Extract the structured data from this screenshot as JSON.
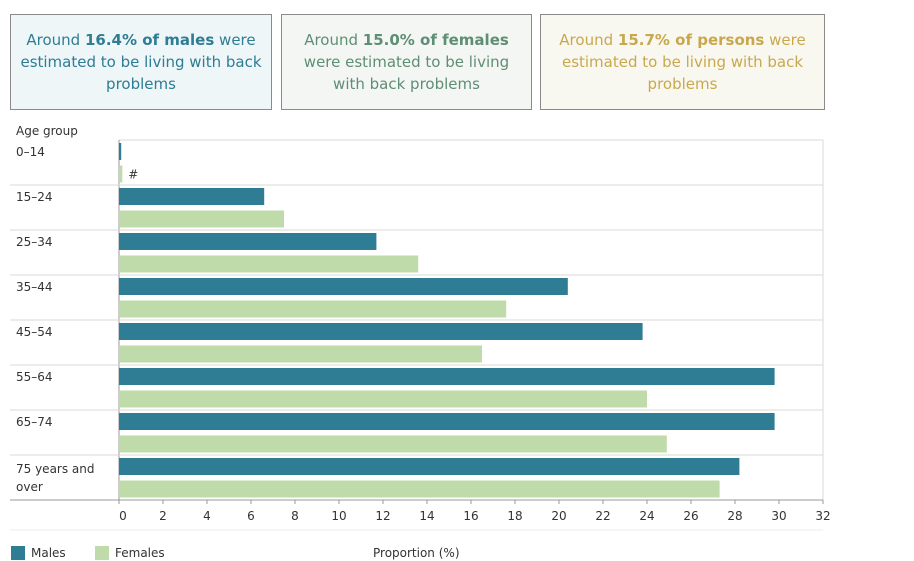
{
  "cards": {
    "males": {
      "pre": "Around ",
      "bold": "16.4% of males",
      "post": " were estimated to be living with back problems"
    },
    "females": {
      "pre": "Around ",
      "bold": "15.0% of females",
      "post": " were estimated to be living with back problems"
    },
    "persons": {
      "pre": "Around ",
      "bold": "15.7% of persons",
      "post": " were estimated to be living with back problems"
    }
  },
  "legend": {
    "males": "Males",
    "females": "Females"
  },
  "colors": {
    "males": "#2e7d95",
    "females": "#bfdba9",
    "grid": "#d8d8d8"
  },
  "chart_data": {
    "type": "bar",
    "orientation": "horizontal",
    "title": "",
    "ylabel": "Age group",
    "xlabel": "Proportion (%)",
    "xlim": [
      0,
      32
    ],
    "xticks": [
      "0",
      "2",
      "4",
      "6",
      "8",
      "10",
      "12",
      "14",
      "16",
      "18",
      "20",
      "22",
      "24",
      "26",
      "28",
      "30",
      "32"
    ],
    "categories": [
      "0–14",
      "15–24",
      "25–34",
      "35–44",
      "45–54",
      "55–64",
      "65–74",
      "75 years and over"
    ],
    "series": [
      {
        "name": "Males",
        "values": [
          0.1,
          6.6,
          11.7,
          20.4,
          23.8,
          29.8,
          29.8,
          28.2
        ]
      },
      {
        "name": "Females",
        "values": [
          0.15,
          7.5,
          13.6,
          17.6,
          16.5,
          24.0,
          24.9,
          27.3
        ]
      }
    ],
    "annotations": [
      {
        "category": "0–14",
        "series": "Females",
        "text": "#"
      }
    ]
  }
}
